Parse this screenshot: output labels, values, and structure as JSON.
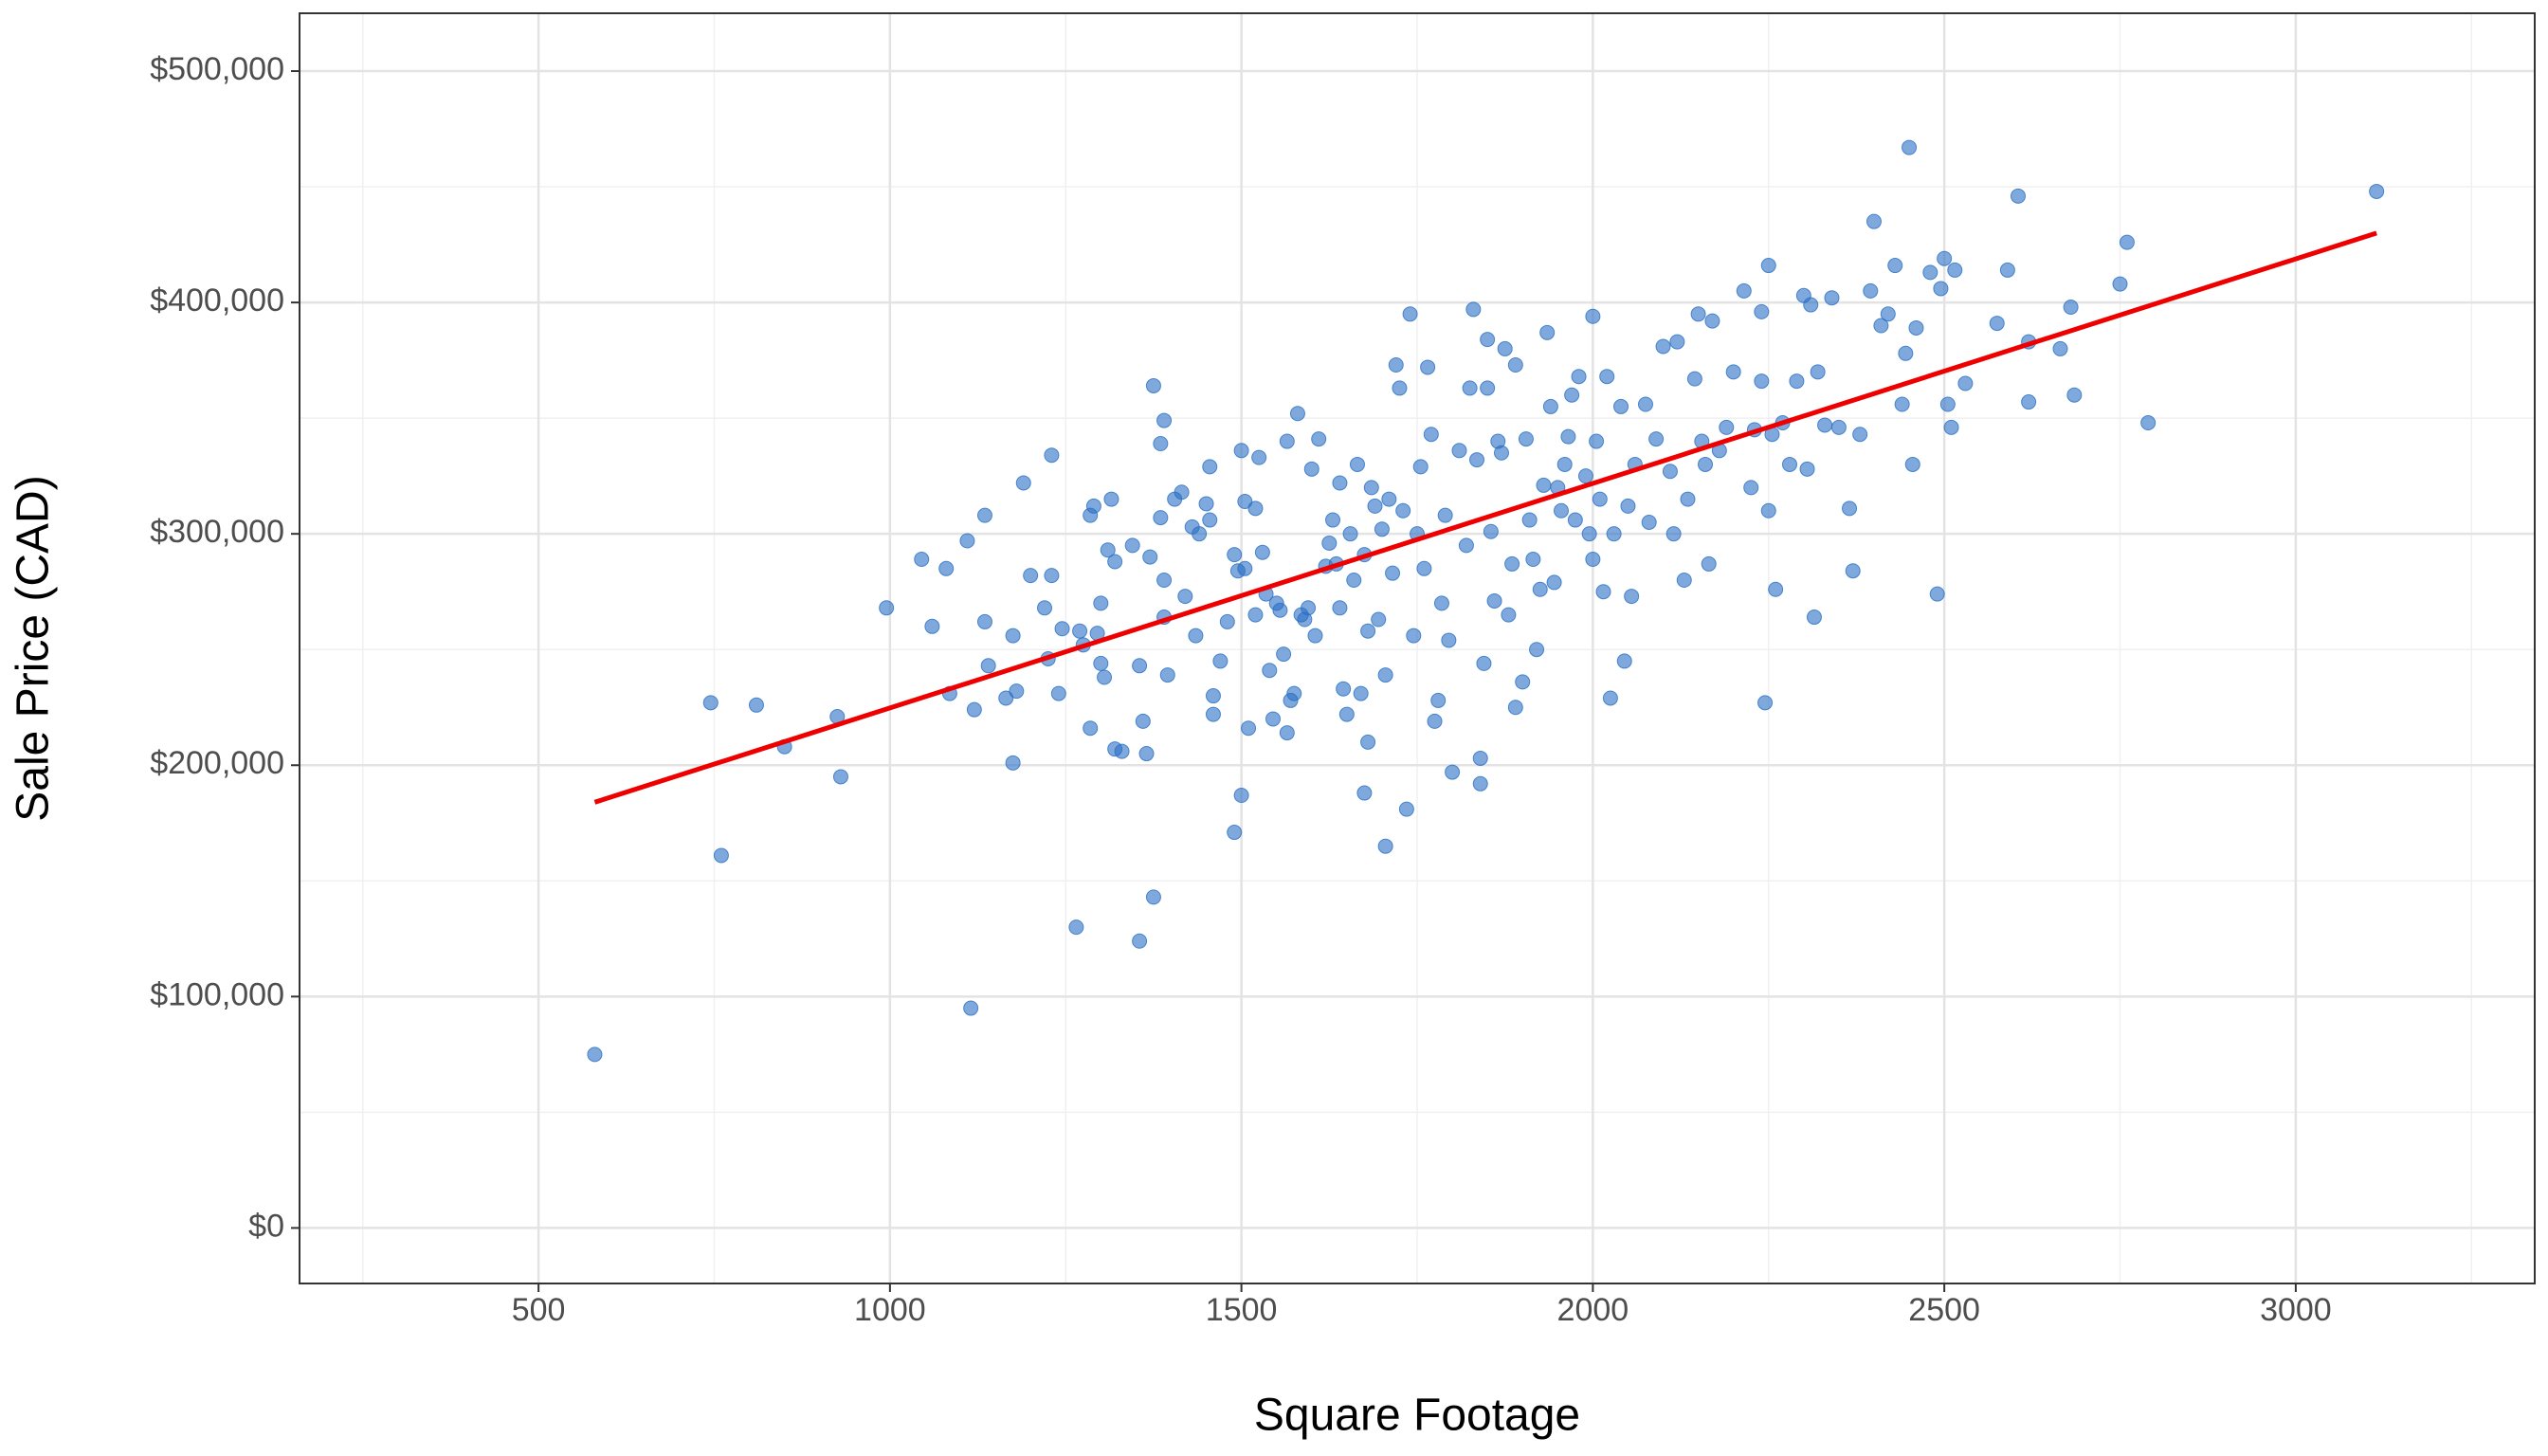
{
  "chart_data": {
    "type": "scatter",
    "x_label": "Square Footage",
    "y_label": "Sale Price (CAD)",
    "xlim": [
      160,
      3340
    ],
    "ylim": [
      -24000,
      525000
    ],
    "xticks": [
      500,
      1000,
      1500,
      2000,
      2500,
      3000
    ],
    "yticks": [
      {
        "value": 0,
        "label": "$0"
      },
      {
        "value": 100000,
        "label": "$100,000"
      },
      {
        "value": 200000,
        "label": "$200,000"
      },
      {
        "value": 300000,
        "label": "$300,000"
      },
      {
        "value": 400000,
        "label": "$400,000"
      },
      {
        "value": 500000,
        "label": "$500,000"
      }
    ],
    "grid": true,
    "minor_grid": true,
    "points": {
      "color": "#2a6fc4",
      "x": [
        580,
        745,
        760,
        810,
        850,
        925,
        930,
        995,
        1045,
        1060,
        1080,
        1085,
        1110,
        1115,
        1120,
        1135,
        1140,
        1135,
        1165,
        1175,
        1180,
        1175,
        1190,
        1200,
        1220,
        1225,
        1230,
        1230,
        1240,
        1245,
        1265,
        1270,
        1275,
        1285,
        1285,
        1290,
        1295,
        1300,
        1300,
        1305,
        1310,
        1315,
        1320,
        1320,
        1330,
        1345,
        1355,
        1355,
        1360,
        1365,
        1370,
        1375,
        1375,
        1385,
        1385,
        1390,
        1390,
        1390,
        1395,
        1405,
        1415,
        1420,
        1430,
        1435,
        1440,
        1450,
        1455,
        1455,
        1460,
        1460,
        1470,
        1480,
        1490,
        1490,
        1495,
        1500,
        1500,
        1505,
        1505,
        1510,
        1520,
        1520,
        1525,
        1530,
        1535,
        1540,
        1545,
        1550,
        1555,
        1560,
        1565,
        1565,
        1570,
        1575,
        1580,
        1585,
        1590,
        1595,
        1600,
        1605,
        1610,
        1620,
        1625,
        1630,
        1635,
        1640,
        1640,
        1645,
        1650,
        1655,
        1660,
        1665,
        1670,
        1675,
        1675,
        1680,
        1680,
        1685,
        1690,
        1695,
        1700,
        1705,
        1705,
        1710,
        1715,
        1720,
        1725,
        1730,
        1735,
        1740,
        1745,
        1750,
        1755,
        1760,
        1765,
        1770,
        1775,
        1780,
        1785,
        1790,
        1795,
        1800,
        1810,
        1820,
        1825,
        1830,
        1835,
        1840,
        1840,
        1845,
        1850,
        1850,
        1855,
        1860,
        1865,
        1870,
        1875,
        1880,
        1885,
        1890,
        1890,
        1900,
        1905,
        1910,
        1915,
        1920,
        1925,
        1930,
        1935,
        1940,
        1945,
        1950,
        1955,
        1960,
        1965,
        1970,
        1975,
        1980,
        1990,
        1995,
        2000,
        2000,
        2005,
        2010,
        2015,
        2020,
        2025,
        2030,
        2040,
        2045,
        2050,
        2055,
        2060,
        2075,
        2080,
        2090,
        2100,
        2110,
        2115,
        2120,
        2130,
        2135,
        2145,
        2150,
        2155,
        2160,
        2165,
        2170,
        2180,
        2190,
        2200,
        2215,
        2225,
        2230,
        2240,
        2240,
        2245,
        2250,
        2250,
        2255,
        2260,
        2270,
        2280,
        2290,
        2300,
        2305,
        2310,
        2315,
        2320,
        2330,
        2340,
        2350,
        2365,
        2370,
        2380,
        2395,
        2400,
        2410,
        2420,
        2430,
        2440,
        2445,
        2450,
        2455,
        2460,
        2480,
        2490,
        2495,
        2500,
        2505,
        2510,
        2515,
        2530,
        2575,
        2590,
        2605,
        2620,
        2620,
        2665,
        2680,
        2685,
        2750,
        2760,
        2790,
        3115
      ],
      "values": [
        75000,
        227000,
        161000,
        226000,
        208000,
        221000,
        195000,
        268000,
        289000,
        260000,
        285000,
        231000,
        297000,
        95000,
        224000,
        262000,
        243000,
        308000,
        229000,
        201000,
        232000,
        256000,
        322000,
        282000,
        268000,
        246000,
        334000,
        282000,
        231000,
        259000,
        130000,
        258000,
        252000,
        216000,
        308000,
        312000,
        257000,
        270000,
        244000,
        238000,
        293000,
        315000,
        207000,
        288000,
        206000,
        295000,
        243000,
        124000,
        219000,
        205000,
        290000,
        364000,
        143000,
        307000,
        339000,
        349000,
        280000,
        264000,
        239000,
        315000,
        318000,
        273000,
        303000,
        256000,
        300000,
        313000,
        329000,
        306000,
        230000,
        222000,
        245000,
        262000,
        171000,
        291000,
        284000,
        336000,
        187000,
        314000,
        285000,
        216000,
        311000,
        265000,
        333000,
        292000,
        274000,
        241000,
        220000,
        270000,
        267000,
        248000,
        340000,
        214000,
        228000,
        231000,
        352000,
        265000,
        263000,
        268000,
        328000,
        256000,
        341000,
        286000,
        296000,
        306000,
        287000,
        268000,
        322000,
        233000,
        222000,
        300000,
        280000,
        330000,
        231000,
        291000,
        188000,
        258000,
        210000,
        320000,
        312000,
        263000,
        302000,
        165000,
        239000,
        315000,
        283000,
        373000,
        363000,
        310000,
        181000,
        395000,
        256000,
        300000,
        329000,
        285000,
        372000,
        343000,
        219000,
        228000,
        270000,
        308000,
        254000,
        197000,
        336000,
        295000,
        363000,
        397000,
        332000,
        192000,
        203000,
        244000,
        384000,
        363000,
        301000,
        271000,
        340000,
        335000,
        380000,
        265000,
        287000,
        225000,
        373000,
        236000,
        341000,
        306000,
        289000,
        250000,
        276000,
        321000,
        387000,
        355000,
        279000,
        320000,
        310000,
        330000,
        342000,
        360000,
        306000,
        368000,
        325000,
        300000,
        289000,
        394000,
        340000,
        315000,
        275000,
        368000,
        229000,
        300000,
        355000,
        245000,
        312000,
        273000,
        330000,
        356000,
        305000,
        341000,
        381000,
        327000,
        300000,
        383000,
        280000,
        315000,
        367000,
        395000,
        340000,
        330000,
        287000,
        392000,
        336000,
        346000,
        370000,
        405000,
        320000,
        345000,
        396000,
        366000,
        227000,
        416000,
        310000,
        343000,
        276000,
        348000,
        330000,
        366000,
        403000,
        328000,
        399000,
        264000,
        370000,
        347000,
        402000,
        346000,
        311000,
        284000,
        343000,
        405000,
        435000,
        390000,
        395000,
        416000,
        356000,
        378000,
        467000,
        330000,
        389000,
        413000,
        274000,
        406000,
        419000,
        356000,
        346000,
        414000,
        365000,
        391000,
        414000,
        446000,
        383000,
        357000,
        380000,
        398000,
        360000,
        408000,
        426000,
        348000,
        448000
      ]
    },
    "fit_line": {
      "color": "#ee0000",
      "x": [
        580,
        3115
      ],
      "values": [
        184000,
        430000
      ]
    }
  }
}
